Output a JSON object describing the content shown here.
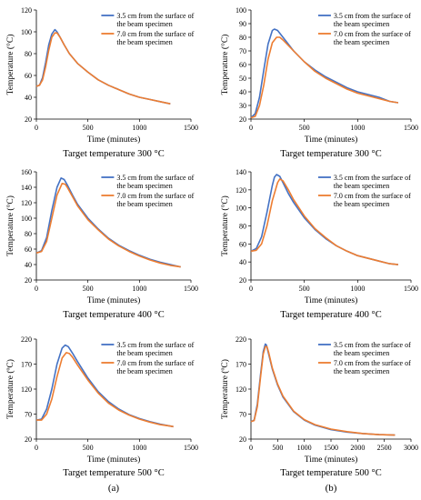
{
  "chart_data": [
    {
      "type": "line",
      "caption": "Target temperature 300 °C",
      "xlabel": "Time (minutes)",
      "ylabel": "Temperature (°C)",
      "xlim": [
        0,
        1500
      ],
      "ylim": [
        20,
        120
      ],
      "xticks": [
        0,
        500,
        1000,
        1500
      ],
      "yticks": [
        20,
        40,
        60,
        80,
        100,
        120
      ],
      "legend_position": "top-right",
      "series": [
        {
          "name": "3.5 cm from the surface of the beam specimen",
          "color": "#4472C4",
          "x": [
            0,
            30,
            60,
            90,
            120,
            150,
            180,
            200,
            230,
            270,
            320,
            400,
            500,
            600,
            700,
            800,
            900,
            1000,
            1100,
            1200,
            1300
          ],
          "y": [
            50,
            51,
            58,
            72,
            88,
            98,
            102,
            100,
            95,
            88,
            80,
            71,
            63,
            56,
            51,
            47,
            43,
            40,
            38,
            36,
            34
          ]
        },
        {
          "name": "7.0 cm from the surface of the beam specimen",
          "color": "#ED7D31",
          "x": [
            0,
            30,
            60,
            90,
            120,
            150,
            180,
            200,
            230,
            270,
            320,
            400,
            500,
            600,
            700,
            800,
            900,
            1000,
            1100,
            1200,
            1300
          ],
          "y": [
            50,
            51,
            56,
            68,
            83,
            95,
            99,
            99,
            95,
            88,
            80,
            71,
            63,
            56,
            51,
            47,
            43,
            40,
            38,
            36,
            34
          ]
        }
      ]
    },
    {
      "type": "line",
      "caption": "Target temperature 300 °C",
      "xlabel": "Time (minutes)",
      "ylabel": "Temperature (°C)",
      "xlim": [
        0,
        1500
      ],
      "ylim": [
        20,
        100
      ],
      "xticks": [
        0,
        500,
        1000,
        1500
      ],
      "yticks": [
        20,
        30,
        40,
        50,
        60,
        70,
        80,
        90,
        100
      ],
      "legend_position": "top-right",
      "series": [
        {
          "name": "3.5 cm from the surface of the beam specimen",
          "color": "#4472C4",
          "x": [
            0,
            40,
            80,
            120,
            160,
            200,
            220,
            250,
            300,
            400,
            500,
            600,
            700,
            800,
            900,
            1000,
            1100,
            1200,
            1300,
            1380
          ],
          "y": [
            21,
            24,
            36,
            56,
            75,
            85,
            86,
            85,
            80,
            70,
            62,
            56,
            51,
            47,
            43,
            40,
            38,
            36,
            33,
            32
          ]
        },
        {
          "name": "7.0 cm from the surface of the beam specimen",
          "color": "#ED7D31",
          "x": [
            0,
            40,
            80,
            120,
            160,
            200,
            240,
            270,
            300,
            400,
            500,
            600,
            700,
            800,
            900,
            1000,
            1100,
            1200,
            1300,
            1380
          ],
          "y": [
            21,
            22,
            30,
            45,
            64,
            76,
            80,
            80,
            78,
            70,
            62,
            55,
            50,
            46,
            42,
            39,
            37,
            35,
            33,
            32
          ]
        }
      ]
    },
    {
      "type": "line",
      "caption": "Target temperature 400 °C",
      "xlabel": "Time (minutes)",
      "ylabel": "Temperature (°C)",
      "xlim": [
        0,
        1500
      ],
      "ylim": [
        20,
        160
      ],
      "xticks": [
        0,
        500,
        1000,
        1500
      ],
      "yticks": [
        20,
        40,
        60,
        80,
        100,
        120,
        140,
        160
      ],
      "legend_position": "top-right",
      "series": [
        {
          "name": "3.5 cm from the surface of the beam specimen",
          "color": "#4472C4",
          "x": [
            0,
            50,
            100,
            150,
            200,
            240,
            270,
            300,
            350,
            400,
            500,
            600,
            700,
            800,
            900,
            1000,
            1100,
            1200,
            1300,
            1400
          ],
          "y": [
            55,
            58,
            75,
            110,
            140,
            152,
            150,
            143,
            130,
            118,
            100,
            86,
            74,
            65,
            58,
            52,
            47,
            43,
            40,
            37
          ]
        },
        {
          "name": "7.0 cm from the surface of the beam specimen",
          "color": "#ED7D31",
          "x": [
            0,
            50,
            100,
            150,
            200,
            250,
            280,
            300,
            350,
            400,
            500,
            600,
            700,
            800,
            900,
            1000,
            1100,
            1200,
            1300,
            1400
          ],
          "y": [
            55,
            57,
            70,
            100,
            130,
            145,
            144,
            140,
            128,
            116,
            98,
            85,
            73,
            64,
            57,
            51,
            46,
            42,
            39,
            37
          ]
        }
      ]
    },
    {
      "type": "line",
      "caption": "Target temperature 400 °C",
      "xlabel": "Time (minutes)",
      "ylabel": "Temperature (°C)",
      "xlim": [
        0,
        1500
      ],
      "ylim": [
        20,
        140
      ],
      "xticks": [
        0,
        500,
        1000,
        1500
      ],
      "yticks": [
        20,
        40,
        60,
        80,
        100,
        120,
        140
      ],
      "legend_position": "top-right",
      "series": [
        {
          "name": "3.5 cm from the surface of the beam specimen",
          "color": "#4472C4",
          "x": [
            0,
            50,
            100,
            150,
            200,
            220,
            240,
            270,
            300,
            350,
            400,
            500,
            600,
            700,
            800,
            900,
            1000,
            1100,
            1200,
            1300,
            1380
          ],
          "y": [
            52,
            55,
            68,
            95,
            125,
            134,
            137,
            135,
            128,
            116,
            106,
            89,
            76,
            66,
            58,
            52,
            47,
            44,
            41,
            38,
            37
          ]
        },
        {
          "name": "7.0 cm from the surface of the beam specimen",
          "color": "#ED7D31",
          "x": [
            0,
            50,
            100,
            150,
            200,
            250,
            270,
            300,
            350,
            400,
            500,
            600,
            700,
            800,
            900,
            1000,
            1100,
            1200,
            1300,
            1380
          ],
          "y": [
            52,
            53,
            60,
            80,
            108,
            128,
            132,
            130,
            120,
            109,
            91,
            77,
            67,
            58,
            52,
            47,
            44,
            41,
            38,
            37
          ]
        }
      ]
    },
    {
      "type": "line",
      "caption": "Target temperature 500 °C",
      "xlabel": "Time (minutes)",
      "ylabel": "Temperature (ºC)",
      "xlim": [
        0,
        1500
      ],
      "ylim": [
        20,
        220
      ],
      "xticks": [
        0,
        500,
        1000,
        1500
      ],
      "yticks": [
        20,
        70,
        120,
        170,
        220
      ],
      "legend_position": "top-right",
      "panel_label": "(a)",
      "series": [
        {
          "name": "3.5 cm from the surface of the beam specimen",
          "color": "#4472C4",
          "x": [
            0,
            50,
            100,
            150,
            200,
            250,
            280,
            310,
            350,
            400,
            500,
            600,
            700,
            800,
            900,
            1000,
            1100,
            1200,
            1300,
            1330
          ],
          "y": [
            58,
            60,
            80,
            120,
            170,
            202,
            208,
            205,
            192,
            175,
            142,
            115,
            95,
            80,
            69,
            61,
            55,
            50,
            46,
            45
          ]
        },
        {
          "name": "7.0 cm from the surface of the beam specimen",
          "color": "#ED7D31",
          "x": [
            0,
            50,
            100,
            150,
            200,
            250,
            290,
            320,
            350,
            400,
            500,
            600,
            700,
            800,
            900,
            1000,
            1100,
            1200,
            1300,
            1330
          ],
          "y": [
            58,
            58,
            70,
            100,
            145,
            182,
            193,
            191,
            184,
            168,
            138,
            112,
            92,
            78,
            68,
            60,
            54,
            49,
            46,
            45
          ]
        }
      ]
    },
    {
      "type": "line",
      "caption": "Target temperature 500 °C",
      "xlabel": "Time (minutes)",
      "ylabel": "Temperature (ºC)",
      "xlim": [
        0,
        3000
      ],
      "ylim": [
        20,
        220
      ],
      "xticks": [
        0,
        500,
        1000,
        1500,
        2000,
        2500,
        3000
      ],
      "yticks": [
        20,
        70,
        120,
        170,
        220
      ],
      "legend_position": "top-right",
      "panel_label": "(b)",
      "series": [
        {
          "name": "3.5 cm from the surface of the beam specimen",
          "color": "#4472C4",
          "x": [
            0,
            60,
            120,
            180,
            230,
            270,
            290,
            320,
            400,
            500,
            600,
            800,
            1000,
            1200,
            1500,
            1800,
            2100,
            2400,
            2700
          ],
          "y": [
            55,
            58,
            90,
            150,
            195,
            210,
            208,
            195,
            160,
            128,
            104,
            75,
            58,
            48,
            39,
            34,
            31,
            29,
            28
          ]
        },
        {
          "name": "7.0 cm from the surface of the beam specimen",
          "color": "#ED7D31",
          "x": [
            0,
            60,
            120,
            180,
            230,
            270,
            300,
            330,
            400,
            500,
            600,
            800,
            1000,
            1200,
            1500,
            1800,
            2100,
            2400,
            2700
          ],
          "y": [
            55,
            57,
            85,
            145,
            190,
            205,
            205,
            194,
            162,
            130,
            106,
            76,
            59,
            49,
            40,
            35,
            31,
            29,
            28
          ]
        }
      ]
    }
  ]
}
